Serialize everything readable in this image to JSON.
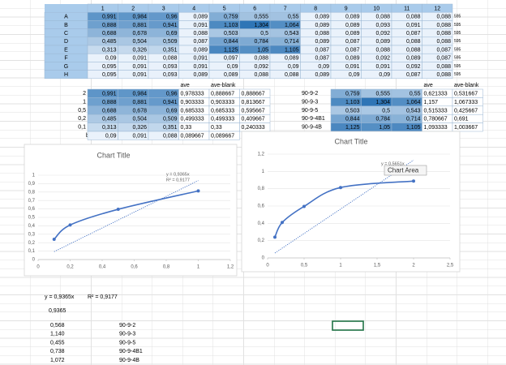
{
  "plate": {
    "columns": [
      "1",
      "2",
      "3",
      "4",
      "5",
      "6",
      "7",
      "8",
      "9",
      "10",
      "11",
      "12"
    ],
    "rows": [
      {
        "label": "A",
        "cells": [
          "0,991",
          "0,984",
          "0,96",
          "0,089",
          "0,759",
          "0,555",
          "0,55",
          "0,089",
          "0,089",
          "0,088",
          "0,088",
          "0,088"
        ],
        "note": "595"
      },
      {
        "label": "B",
        "cells": [
          "0,888",
          "0,881",
          "0,941",
          "0,091",
          "1,103",
          "1,304",
          "1,064",
          "0,089",
          "0,089",
          "0,093",
          "0,091",
          "0,088"
        ],
        "note": "595"
      },
      {
        "label": "C",
        "cells": [
          "0,688",
          "0,678",
          "0,69",
          "0,088",
          "0,503",
          "0,5",
          "0,543",
          "0,088",
          "0,089",
          "0,092",
          "0,087",
          "0,088"
        ],
        "note": "595"
      },
      {
        "label": "D",
        "cells": [
          "0,485",
          "0,504",
          "0,509",
          "0,087",
          "0,844",
          "0,784",
          "0,714",
          "0,089",
          "0,087",
          "0,089",
          "0,088",
          "0,088"
        ],
        "note": "595"
      },
      {
        "label": "E",
        "cells": [
          "0,313",
          "0,326",
          "0,351",
          "0,089",
          "1,125",
          "1,05",
          "1,105",
          "0,087",
          "0,087",
          "0,088",
          "0,088",
          "0,087"
        ],
        "note": "595"
      },
      {
        "label": "F",
        "cells": [
          "0,09",
          "0,091",
          "0,088",
          "0,091",
          "0,097",
          "0,088",
          "0,089",
          "0,087",
          "0,089",
          "0,092",
          "0,089",
          "0,087"
        ],
        "note": "595"
      },
      {
        "label": "G",
        "cells": [
          "0,095",
          "0,091",
          "0,093",
          "0,091",
          "0,09",
          "0,092",
          "0,09",
          "0,09",
          "0,091",
          "0,091",
          "0,092",
          "0,088"
        ],
        "note": "595"
      },
      {
        "label": "H",
        "cells": [
          "0,095",
          "0,091",
          "0,093",
          "0,089",
          "0,089",
          "0,088",
          "0,088",
          "0,089",
          "0,09",
          "0,09",
          "0,087",
          "0,088"
        ],
        "note": "595"
      }
    ]
  },
  "standards": {
    "headers": [
      "ave",
      "ave-blank"
    ],
    "rows": [
      {
        "label": "2",
        "cells": [
          "0,991",
          "0,984",
          "0,96",
          "0,978333",
          "0,888667",
          "0,888667"
        ]
      },
      {
        "label": "1",
        "cells": [
          "0,888",
          "0,881",
          "0,941",
          "0,903333",
          "0,903333",
          "0,813667"
        ]
      },
      {
        "label": "0,5",
        "cells": [
          "0,688",
          "0,678",
          "0,69",
          "0,685333",
          "0,685333",
          "0,595667"
        ]
      },
      {
        "label": "0,2",
        "cells": [
          "0,485",
          "0,504",
          "0,509",
          "0,499333",
          "0,499333",
          "0,409667"
        ]
      },
      {
        "label": "0,1",
        "cells": [
          "0,313",
          "0,326",
          "0,351",
          "0,33",
          "0,33",
          "0,240333"
        ]
      },
      {
        "label": "blank",
        "cells": [
          "0,09",
          "0,091",
          "0,088",
          "0,089667",
          "0,089667"
        ]
      }
    ]
  },
  "samples": {
    "headers": [
      "ave",
      "ave-blank"
    ],
    "rows": [
      {
        "label": "90-9-2",
        "cells": [
          "0,759",
          "0,555",
          "0,55",
          "0,621333",
          "0,531667"
        ]
      },
      {
        "label": "90-9-3",
        "cells": [
          "1,103",
          "1,304",
          "1,064",
          "1,157",
          "1,067333"
        ]
      },
      {
        "label": "90-9-5",
        "cells": [
          "0,503",
          "0,5",
          "0,543",
          "0,515333",
          "0,425667"
        ]
      },
      {
        "label": "90-9-4B1",
        "cells": [
          "0,844",
          "0,784",
          "0,714",
          "0,780667",
          "0,691"
        ]
      },
      {
        "label": "90-9-4B",
        "cells": [
          "1,125",
          "1,05",
          "1,105",
          "1,093333",
          "1,003667"
        ]
      }
    ]
  },
  "chart_data": [
    {
      "type": "scatter",
      "title": "Chart Title",
      "x": [
        0.1,
        0.2,
        0.5,
        1
      ],
      "series": [
        {
          "color": "#4472c4",
          "values": [
            0.240333,
            0.409667,
            0.595667,
            0.813667
          ]
        }
      ],
      "trendline": {
        "slope": 0.9365,
        "equation": "y = 0,9365x",
        "r2": "R² = 0,9177"
      },
      "xlim": [
        0,
        1.2
      ],
      "xticks": [
        0,
        {
          "value": 0.2,
          "label": "0,2"
        },
        {
          "value": 0.4,
          "label": "0,4"
        },
        {
          "value": 0.6,
          "label": "0,6"
        },
        {
          "value": 0.8,
          "label": "0,8"
        },
        1,
        {
          "value": 1.2,
          "label": "1,2"
        }
      ],
      "ylim": [
        0,
        1
      ],
      "yticks": [
        0,
        {
          "value": 0.1,
          "label": "0,1"
        },
        {
          "value": 0.2,
          "label": "0,2"
        },
        {
          "value": 0.3,
          "label": "0,3"
        },
        {
          "value": 0.4,
          "label": "0,4"
        },
        {
          "value": 0.5,
          "label": "0,5"
        },
        {
          "value": 0.6,
          "label": "0,6"
        },
        {
          "value": 0.7,
          "label": "0,7"
        },
        {
          "value": 0.8,
          "label": "0,8"
        },
        {
          "value": 0.9,
          "label": "0,9"
        },
        1
      ],
      "grid": true
    },
    {
      "type": "scatter",
      "title": "Chart Title",
      "x": [
        0.1,
        0.2,
        0.5,
        1,
        2
      ],
      "series": [
        {
          "color": "#4472c4",
          "values": [
            0.240333,
            0.409667,
            0.595667,
            0.813667,
            0.888667
          ]
        }
      ],
      "trendline": {
        "slope": 0.5651,
        "equation": "y = 0,5651x"
      },
      "tooltip": "Chart Area",
      "xlim": [
        0,
        2.5
      ],
      "xticks": [
        0,
        {
          "value": 0.5,
          "label": "0,5"
        },
        1,
        {
          "value": 1.5,
          "label": "1,5"
        },
        2,
        {
          "value": 2.5,
          "label": "2,5"
        }
      ],
      "ylim": [
        0,
        1.2
      ],
      "yticks": [
        0,
        {
          "value": 0.2,
          "label": "0,2"
        },
        {
          "value": 0.4,
          "label": "0,4"
        },
        {
          "value": 0.6,
          "label": "0,6"
        },
        {
          "value": 0.8,
          "label": "0,8"
        },
        1,
        {
          "value": 1.2,
          "label": "1,2"
        }
      ],
      "grid": true
    }
  ],
  "summary": {
    "equation": "y = 0,9365x",
    "r2": "R² = 0,9177",
    "slope": "0,9365",
    "results": [
      {
        "value": "0,568",
        "name": "90-9-2"
      },
      {
        "value": "1,140",
        "name": "90-9-3"
      },
      {
        "value": "0,455",
        "name": "90-9-5"
      },
      {
        "value": "0,738",
        "name": "90-9-4B1"
      },
      {
        "value": "1,072",
        "name": "90-9-4B"
      }
    ]
  }
}
